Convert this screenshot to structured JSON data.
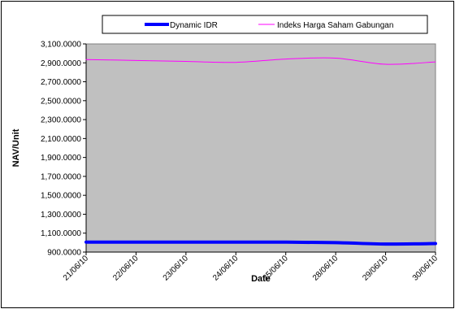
{
  "chart_data": {
    "type": "line",
    "title": "",
    "xlabel": "Date",
    "ylabel": "NAV/Unit",
    "categories": [
      "21/06/10",
      "22/06/10",
      "23/06/10",
      "24/06/10",
      "25/06/10",
      "28/06/10",
      "29/06/10",
      "30/06/10"
    ],
    "ylim": [
      900,
      3100
    ],
    "yticks": [
      "900.0000",
      "1,100.0000",
      "1,300.0000",
      "1,500.0000",
      "1,700.0000",
      "1,900.0000",
      "2,100.0000",
      "2,300.0000",
      "2,500.0000",
      "2,700.0000",
      "2,900.0000",
      "3,100.0000"
    ],
    "grid": false,
    "legend_position": "top",
    "plot_background": "#c0c0c0",
    "series": [
      {
        "name": "Dynamic IDR",
        "color": "#0000ff",
        "values": [
          1005,
          1005,
          1005,
          1005,
          1005,
          1000,
          985,
          990
        ]
      },
      {
        "name": "Indeks Harga Saham Gabungan",
        "color": "#ff00ff",
        "values": [
          2935,
          2925,
          2915,
          2905,
          2940,
          2950,
          2885,
          2910
        ]
      }
    ]
  }
}
